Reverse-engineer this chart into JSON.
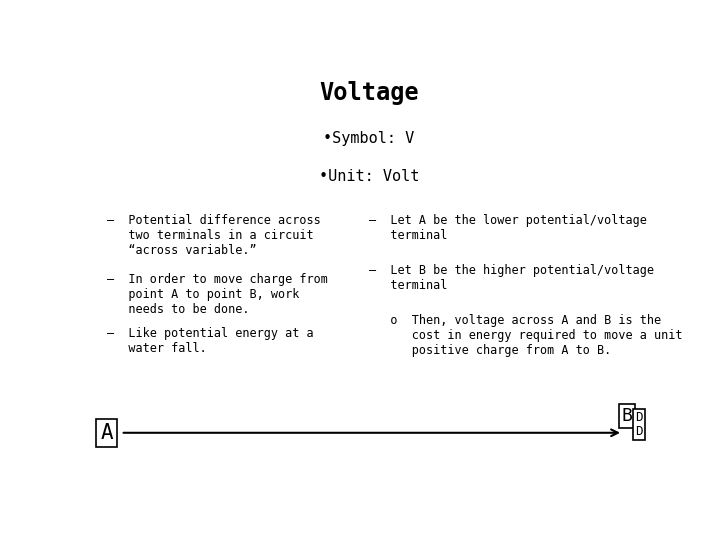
{
  "title": "Voltage",
  "bullet1": "•Symbol: V",
  "bullet2": "•Unit: Volt",
  "left_col": [
    "–  Potential difference across\n   two terminals in a circuit\n   “across variable.”",
    "–  In order to move charge from\n   point A to point B, work\n   needs to be done.",
    "–  Like potential energy at a\n   water fall."
  ],
  "right_col": [
    "–  Let A be the lower potential/voltage\n   terminal",
    "–  Let B be the higher potential/voltage\n   terminal",
    "   o  Then, voltage across A and B is the\n      cost in energy required to move a unit\n      positive charge from A to B."
  ],
  "label_A": "A",
  "label_B": "B",
  "label_DD": "D\nD",
  "bg_color": "#ffffff",
  "text_color": "#000000",
  "title_fontsize": 17,
  "bullet_fontsize": 11,
  "body_fontsize": 8.5,
  "font_family": "DejaVu Sans Mono"
}
